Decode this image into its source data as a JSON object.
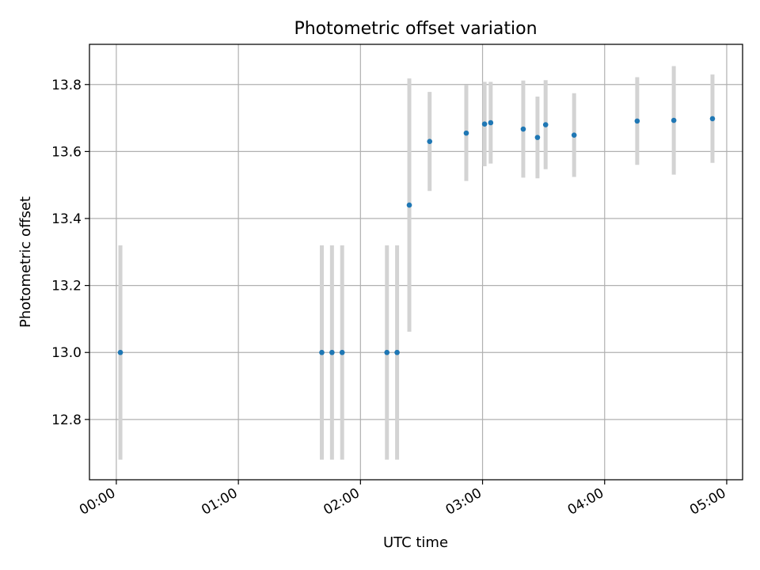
{
  "chart_data": {
    "type": "scatter",
    "title": "Photometric offset variation",
    "xlabel": "UTC time",
    "ylabel": "Photometric offset",
    "x_unit": "hours UTC",
    "xlim": [
      -0.22,
      5.13
    ],
    "ylim": [
      12.62,
      13.92
    ],
    "xticks": [
      {
        "value": 0,
        "label": "00:00"
      },
      {
        "value": 1,
        "label": "01:00"
      },
      {
        "value": 2,
        "label": "02:00"
      },
      {
        "value": 3,
        "label": "03:00"
      },
      {
        "value": 4,
        "label": "04:00"
      },
      {
        "value": 5,
        "label": "05:00"
      }
    ],
    "yticks": [
      {
        "value": 12.8,
        "label": "12.8"
      },
      {
        "value": 13.0,
        "label": "13.0"
      },
      {
        "value": 13.2,
        "label": "13.2"
      },
      {
        "value": 13.4,
        "label": "13.4"
      },
      {
        "value": 13.6,
        "label": "13.6"
      },
      {
        "value": 13.8,
        "label": "13.8"
      }
    ],
    "grid": true,
    "colors": {
      "point": "#1f77b4",
      "errorbar": "#d3d3d3",
      "grid": "#b0b0b0"
    },
    "points": [
      {
        "x": "00:02",
        "y": 13.0,
        "err": 0.32
      },
      {
        "x": "01:41",
        "y": 13.0,
        "err": 0.32
      },
      {
        "x": "01:46",
        "y": 13.0,
        "err": 0.32
      },
      {
        "x": "01:51",
        "y": 13.0,
        "err": 0.32
      },
      {
        "x": "02:13",
        "y": 13.0,
        "err": 0.32
      },
      {
        "x": "02:18",
        "y": 13.0,
        "err": 0.32
      },
      {
        "x": "02:24",
        "y": 13.44,
        "err": 0.378
      },
      {
        "x": "02:34",
        "y": 13.63,
        "err": 0.148
      },
      {
        "x": "02:52",
        "y": 13.655,
        "err": 0.143
      },
      {
        "x": "03:01",
        "y": 13.682,
        "err": 0.126
      },
      {
        "x": "03:04",
        "y": 13.686,
        "err": 0.122
      },
      {
        "x": "03:20",
        "y": 13.667,
        "err": 0.145
      },
      {
        "x": "03:27",
        "y": 13.642,
        "err": 0.122
      },
      {
        "x": "03:31",
        "y": 13.68,
        "err": 0.133
      },
      {
        "x": "03:45",
        "y": 13.649,
        "err": 0.125
      },
      {
        "x": "04:16",
        "y": 13.691,
        "err": 0.131
      },
      {
        "x": "04:34",
        "y": 13.693,
        "err": 0.162
      },
      {
        "x": "04:53",
        "y": 13.698,
        "err": 0.132
      }
    ]
  }
}
